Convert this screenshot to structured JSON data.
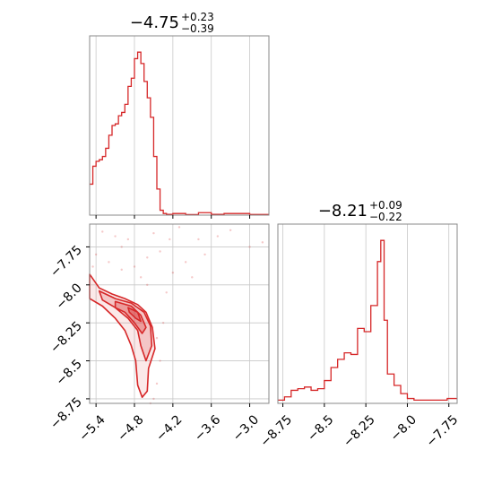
{
  "accent": "#d62728",
  "grid_color": "#c8c8c8",
  "chart_data": [
    {
      "type": "histogram",
      "panel": "top-left",
      "title": {
        "value": "−4.75",
        "plus": "+0.23",
        "minus": "−0.39"
      },
      "grid": true,
      "xlim": [
        -5.5,
        -2.7
      ],
      "xticks": [
        -5.4,
        -4.8,
        -4.2,
        -3.6,
        -3.0
      ],
      "ylim": [
        0,
        1.1
      ],
      "bins": [
        [
          -5.5,
          -5.45,
          0.19
        ],
        [
          -5.45,
          -5.4,
          0.3
        ],
        [
          -5.4,
          -5.35,
          0.33
        ],
        [
          -5.35,
          -5.3,
          0.34
        ],
        [
          -5.3,
          -5.25,
          0.36
        ],
        [
          -5.25,
          -5.2,
          0.41
        ],
        [
          -5.2,
          -5.15,
          0.49
        ],
        [
          -5.15,
          -5.1,
          0.55
        ],
        [
          -5.1,
          -5.05,
          0.56
        ],
        [
          -5.05,
          -5.0,
          0.61
        ],
        [
          -5.0,
          -4.95,
          0.63
        ],
        [
          -4.95,
          -4.9,
          0.68
        ],
        [
          -4.9,
          -4.85,
          0.79
        ],
        [
          -4.85,
          -4.8,
          0.84
        ],
        [
          -4.8,
          -4.75,
          0.96
        ],
        [
          -4.75,
          -4.7,
          1.0
        ],
        [
          -4.7,
          -4.65,
          0.93
        ],
        [
          -4.65,
          -4.6,
          0.82
        ],
        [
          -4.6,
          -4.55,
          0.72
        ],
        [
          -4.55,
          -4.5,
          0.6
        ],
        [
          -4.5,
          -4.45,
          0.36
        ],
        [
          -4.45,
          -4.4,
          0.16
        ],
        [
          -4.4,
          -4.35,
          0.03
        ],
        [
          -4.35,
          -4.3,
          0.01
        ],
        [
          -4.3,
          -4.2,
          0.005
        ],
        [
          -4.2,
          -4.0,
          0.01
        ],
        [
          -4.0,
          -3.8,
          0.003
        ],
        [
          -3.8,
          -3.6,
          0.015
        ],
        [
          -3.6,
          -3.4,
          0.005
        ],
        [
          -3.4,
          -3.0,
          0.01
        ],
        [
          -3.0,
          -2.7,
          0.004
        ]
      ]
    },
    {
      "type": "histogram",
      "panel": "bottom-right",
      "title": {
        "value": "−8.21",
        "plus": "+0.09",
        "minus": "−0.22"
      },
      "grid": true,
      "xlim": [
        -8.78,
        -7.7
      ],
      "xticks": [
        -8.75,
        -8.5,
        -8.25,
        -8.0,
        -7.75
      ],
      "ylim": [
        0,
        1.1
      ],
      "bins": [
        [
          -8.78,
          -8.74,
          0.02
        ],
        [
          -8.74,
          -8.7,
          0.04
        ],
        [
          -8.7,
          -8.66,
          0.08
        ],
        [
          -8.66,
          -8.62,
          0.09
        ],
        [
          -8.62,
          -8.58,
          0.1
        ],
        [
          -8.58,
          -8.54,
          0.08
        ],
        [
          -8.54,
          -8.5,
          0.09
        ],
        [
          -8.5,
          -8.46,
          0.14
        ],
        [
          -8.46,
          -8.42,
          0.22
        ],
        [
          -8.42,
          -8.38,
          0.27
        ],
        [
          -8.38,
          -8.34,
          0.31
        ],
        [
          -8.34,
          -8.3,
          0.3
        ],
        [
          -8.3,
          -8.26,
          0.46
        ],
        [
          -8.26,
          -8.22,
          0.44
        ],
        [
          -8.22,
          -8.18,
          0.6
        ],
        [
          -8.18,
          -8.16,
          0.87
        ],
        [
          -8.16,
          -8.14,
          1.0
        ],
        [
          -8.14,
          -8.12,
          0.51
        ],
        [
          -8.12,
          -8.08,
          0.18
        ],
        [
          -8.08,
          -8.04,
          0.11
        ],
        [
          -8.04,
          -8.0,
          0.06
        ],
        [
          -8.0,
          -7.96,
          0.03
        ],
        [
          -7.96,
          -7.9,
          0.02
        ],
        [
          -7.9,
          -7.84,
          0.02
        ],
        [
          -7.84,
          -7.76,
          0.02
        ],
        [
          -7.76,
          -7.7,
          0.03
        ]
      ]
    },
    {
      "type": "contour",
      "panel": "bottom-left",
      "grid": true,
      "xlim": [
        -5.5,
        -2.7
      ],
      "ylim": [
        -8.78,
        -7.6
      ],
      "xticks": [
        -5.4,
        -4.8,
        -4.2,
        -3.6,
        -3.0
      ],
      "yticks": [
        -7.75,
        -8.0,
        -8.25,
        -8.5,
        -8.75
      ],
      "contours": [
        [
          [
            -5.5,
            -7.93
          ],
          [
            -5.35,
            -8.02
          ],
          [
            -5.15,
            -8.06
          ],
          [
            -4.95,
            -8.09
          ],
          [
            -4.75,
            -8.13
          ],
          [
            -4.62,
            -8.18
          ],
          [
            -4.52,
            -8.28
          ],
          [
            -4.48,
            -8.42
          ],
          [
            -4.58,
            -8.55
          ],
          [
            -4.6,
            -8.7
          ],
          [
            -4.68,
            -8.74
          ],
          [
            -4.75,
            -8.66
          ],
          [
            -4.78,
            -8.5
          ],
          [
            -4.85,
            -8.4
          ],
          [
            -4.95,
            -8.3
          ],
          [
            -5.1,
            -8.22
          ],
          [
            -5.3,
            -8.14
          ],
          [
            -5.5,
            -8.09
          ]
        ],
        [
          [
            -5.35,
            -8.04
          ],
          [
            -5.1,
            -8.09
          ],
          [
            -4.85,
            -8.12
          ],
          [
            -4.65,
            -8.18
          ],
          [
            -4.55,
            -8.27
          ],
          [
            -4.53,
            -8.4
          ],
          [
            -4.62,
            -8.5
          ],
          [
            -4.7,
            -8.4
          ],
          [
            -4.75,
            -8.3
          ],
          [
            -4.9,
            -8.22
          ],
          [
            -5.1,
            -8.15
          ],
          [
            -5.3,
            -8.1
          ]
        ],
        [
          [
            -5.1,
            -8.11
          ],
          [
            -4.85,
            -8.14
          ],
          [
            -4.7,
            -8.2
          ],
          [
            -4.62,
            -8.28
          ],
          [
            -4.68,
            -8.32
          ],
          [
            -4.8,
            -8.25
          ],
          [
            -4.95,
            -8.18
          ],
          [
            -5.1,
            -8.15
          ]
        ],
        [
          [
            -4.9,
            -8.15
          ],
          [
            -4.75,
            -8.18
          ],
          [
            -4.7,
            -8.24
          ],
          [
            -4.78,
            -8.22
          ],
          [
            -4.88,
            -8.18
          ]
        ]
      ],
      "points": [
        [
          -5.3,
          -7.65
        ],
        [
          -5.1,
          -7.68
        ],
        [
          -4.9,
          -7.7
        ],
        [
          -4.5,
          -7.66
        ],
        [
          -4.1,
          -7.62
        ],
        [
          -3.8,
          -7.7
        ],
        [
          -3.5,
          -7.68
        ],
        [
          -3.3,
          -7.64
        ],
        [
          -3.0,
          -7.75
        ],
        [
          -2.8,
          -7.72
        ],
        [
          -5.4,
          -7.8
        ],
        [
          -5.2,
          -7.85
        ],
        [
          -5.0,
          -7.9
        ],
        [
          -4.8,
          -7.88
        ],
        [
          -4.6,
          -7.82
        ],
        [
          -4.4,
          -7.78
        ],
        [
          -4.2,
          -7.92
        ],
        [
          -4.0,
          -7.85
        ],
        [
          -3.9,
          -7.95
        ],
        [
          -3.7,
          -7.8
        ],
        [
          -4.6,
          -8.0
        ],
        [
          -4.3,
          -8.05
        ],
        [
          -4.35,
          -8.25
        ],
        [
          -4.4,
          -8.5
        ],
        [
          -4.45,
          -8.65
        ],
        [
          -4.5,
          -8.75
        ],
        [
          -4.55,
          -8.78
        ],
        [
          -5.45,
          -7.88
        ],
        [
          -5.0,
          -7.75
        ],
        [
          -4.7,
          -7.95
        ],
        [
          -4.25,
          -7.7
        ],
        [
          -4.45,
          -8.35
        ]
      ]
    }
  ]
}
